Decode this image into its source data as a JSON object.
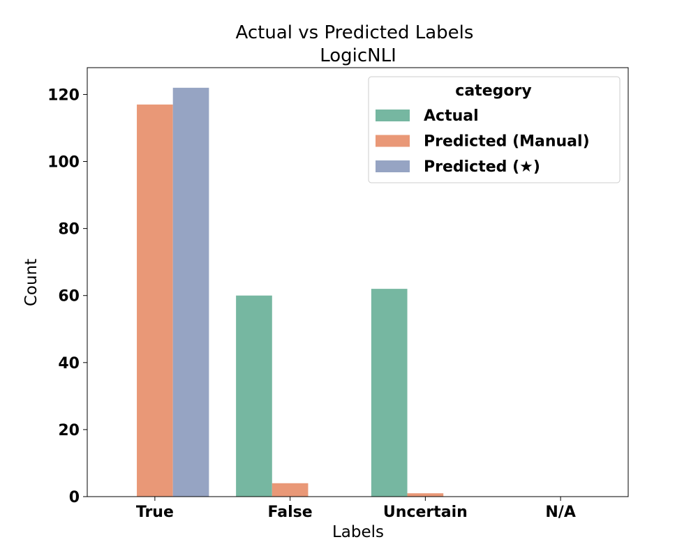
{
  "chart_data": {
    "type": "bar",
    "title": "Actual vs Predicted Labels",
    "subtitle": "LogicNLI",
    "xlabel": "Labels",
    "ylabel": "Count",
    "categories": [
      "True",
      "False",
      "Uncertain",
      "N/A"
    ],
    "series": [
      {
        "name": "Actual",
        "color": "#76b7a1",
        "values": [
          0,
          60,
          62,
          0
        ]
      },
      {
        "name": "Predicted (Manual)",
        "color": "#e99877",
        "values": [
          117,
          4,
          1,
          0
        ]
      },
      {
        "name": "Predicted (★)",
        "color": "#96a4c3",
        "values": [
          122,
          0,
          0,
          0
        ]
      }
    ],
    "ylim": [
      0,
      128
    ],
    "yticks": [
      0,
      20,
      40,
      60,
      80,
      100,
      120
    ],
    "grid": false,
    "legend": {
      "title": "category",
      "position": "top-right"
    }
  }
}
